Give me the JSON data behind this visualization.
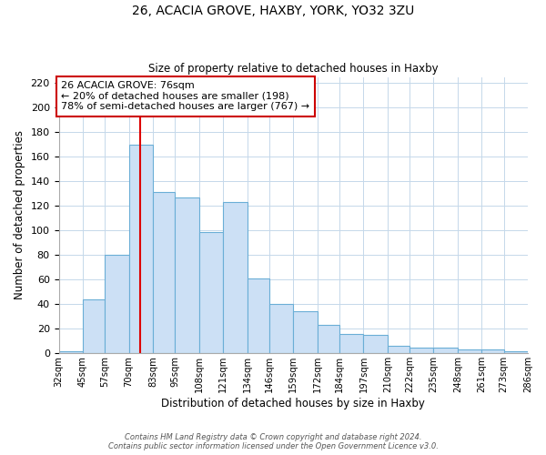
{
  "title1": "26, ACACIA GROVE, HAXBY, YORK, YO32 3ZU",
  "title2": "Size of property relative to detached houses in Haxby",
  "xlabel": "Distribution of detached houses by size in Haxby",
  "ylabel": "Number of detached properties",
  "categories": [
    "32sqm",
    "45sqm",
    "57sqm",
    "70sqm",
    "83sqm",
    "95sqm",
    "108sqm",
    "121sqm",
    "134sqm",
    "146sqm",
    "159sqm",
    "172sqm",
    "184sqm",
    "197sqm",
    "210sqm",
    "222sqm",
    "235sqm",
    "248sqm",
    "261sqm",
    "273sqm",
    "286sqm"
  ],
  "values": [
    2,
    44,
    80,
    170,
    131,
    127,
    99,
    123,
    61,
    40,
    34,
    23,
    16,
    15,
    6,
    5,
    5,
    3,
    3,
    2,
    0
  ],
  "bar_color": "#cce0f5",
  "bar_edge_color": "#6aaed6",
  "annotation_title": "26 ACACIA GROVE: 76sqm",
  "annotation_line1": "← 20% of detached houses are smaller (198)",
  "annotation_line2": "78% of semi-detached houses are larger (767) →",
  "footer1": "Contains HM Land Registry data © Crown copyright and database right 2024.",
  "footer2": "Contains public sector information licensed under the Open Government Licence v3.0.",
  "ylim": [
    0,
    225
  ],
  "yticks": [
    0,
    20,
    40,
    60,
    80,
    100,
    120,
    140,
    160,
    180,
    200,
    220
  ],
  "bin_edges": [
    32,
    45,
    57,
    70,
    83,
    95,
    108,
    121,
    134,
    146,
    159,
    172,
    184,
    197,
    210,
    222,
    235,
    248,
    261,
    273,
    286
  ],
  "red_line_x": 76
}
